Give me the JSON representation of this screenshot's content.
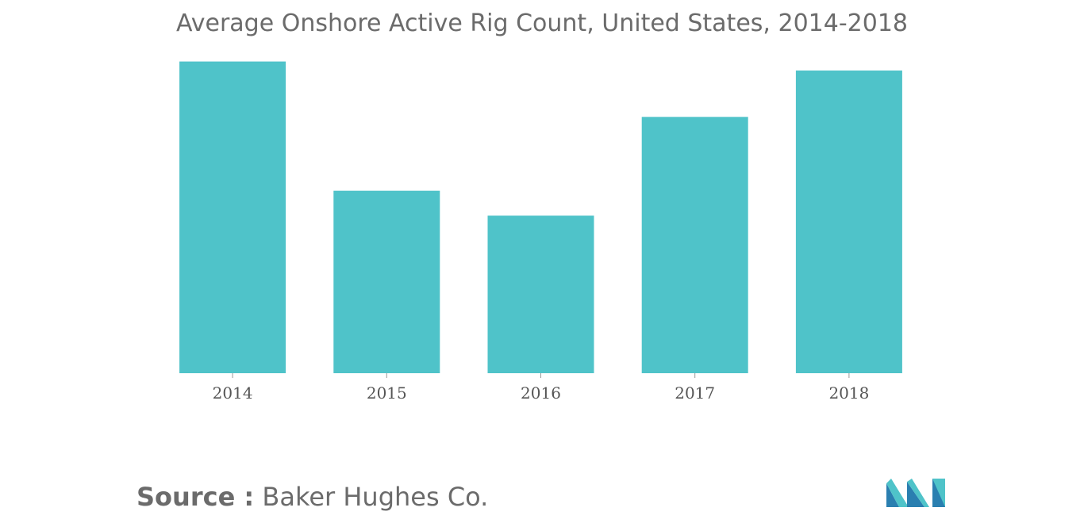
{
  "chart_data": {
    "type": "bar",
    "title": "Average Onshore Active Rig Count, United States, 2014-2018",
    "categories": [
      "2014",
      "2015",
      "2016",
      "2017",
      "2018"
    ],
    "values": [
      1804,
      1056,
      912,
      1483,
      1752
    ],
    "xlabel": "",
    "ylabel": "",
    "ylim": [
      0,
      2050
    ],
    "grid": false,
    "legend": "none",
    "bar_color": "#4fc3c9"
  },
  "source": {
    "label": "Source :",
    "value": "Baker Hughes Co."
  },
  "colors": {
    "title": "#6b6b6b",
    "bars": "#4fc3c9",
    "logo_dark": "#2a7fb0",
    "logo_light": "#4fc3c9"
  },
  "logo": {
    "icon": "mordor-intelligence-logo-icon"
  }
}
